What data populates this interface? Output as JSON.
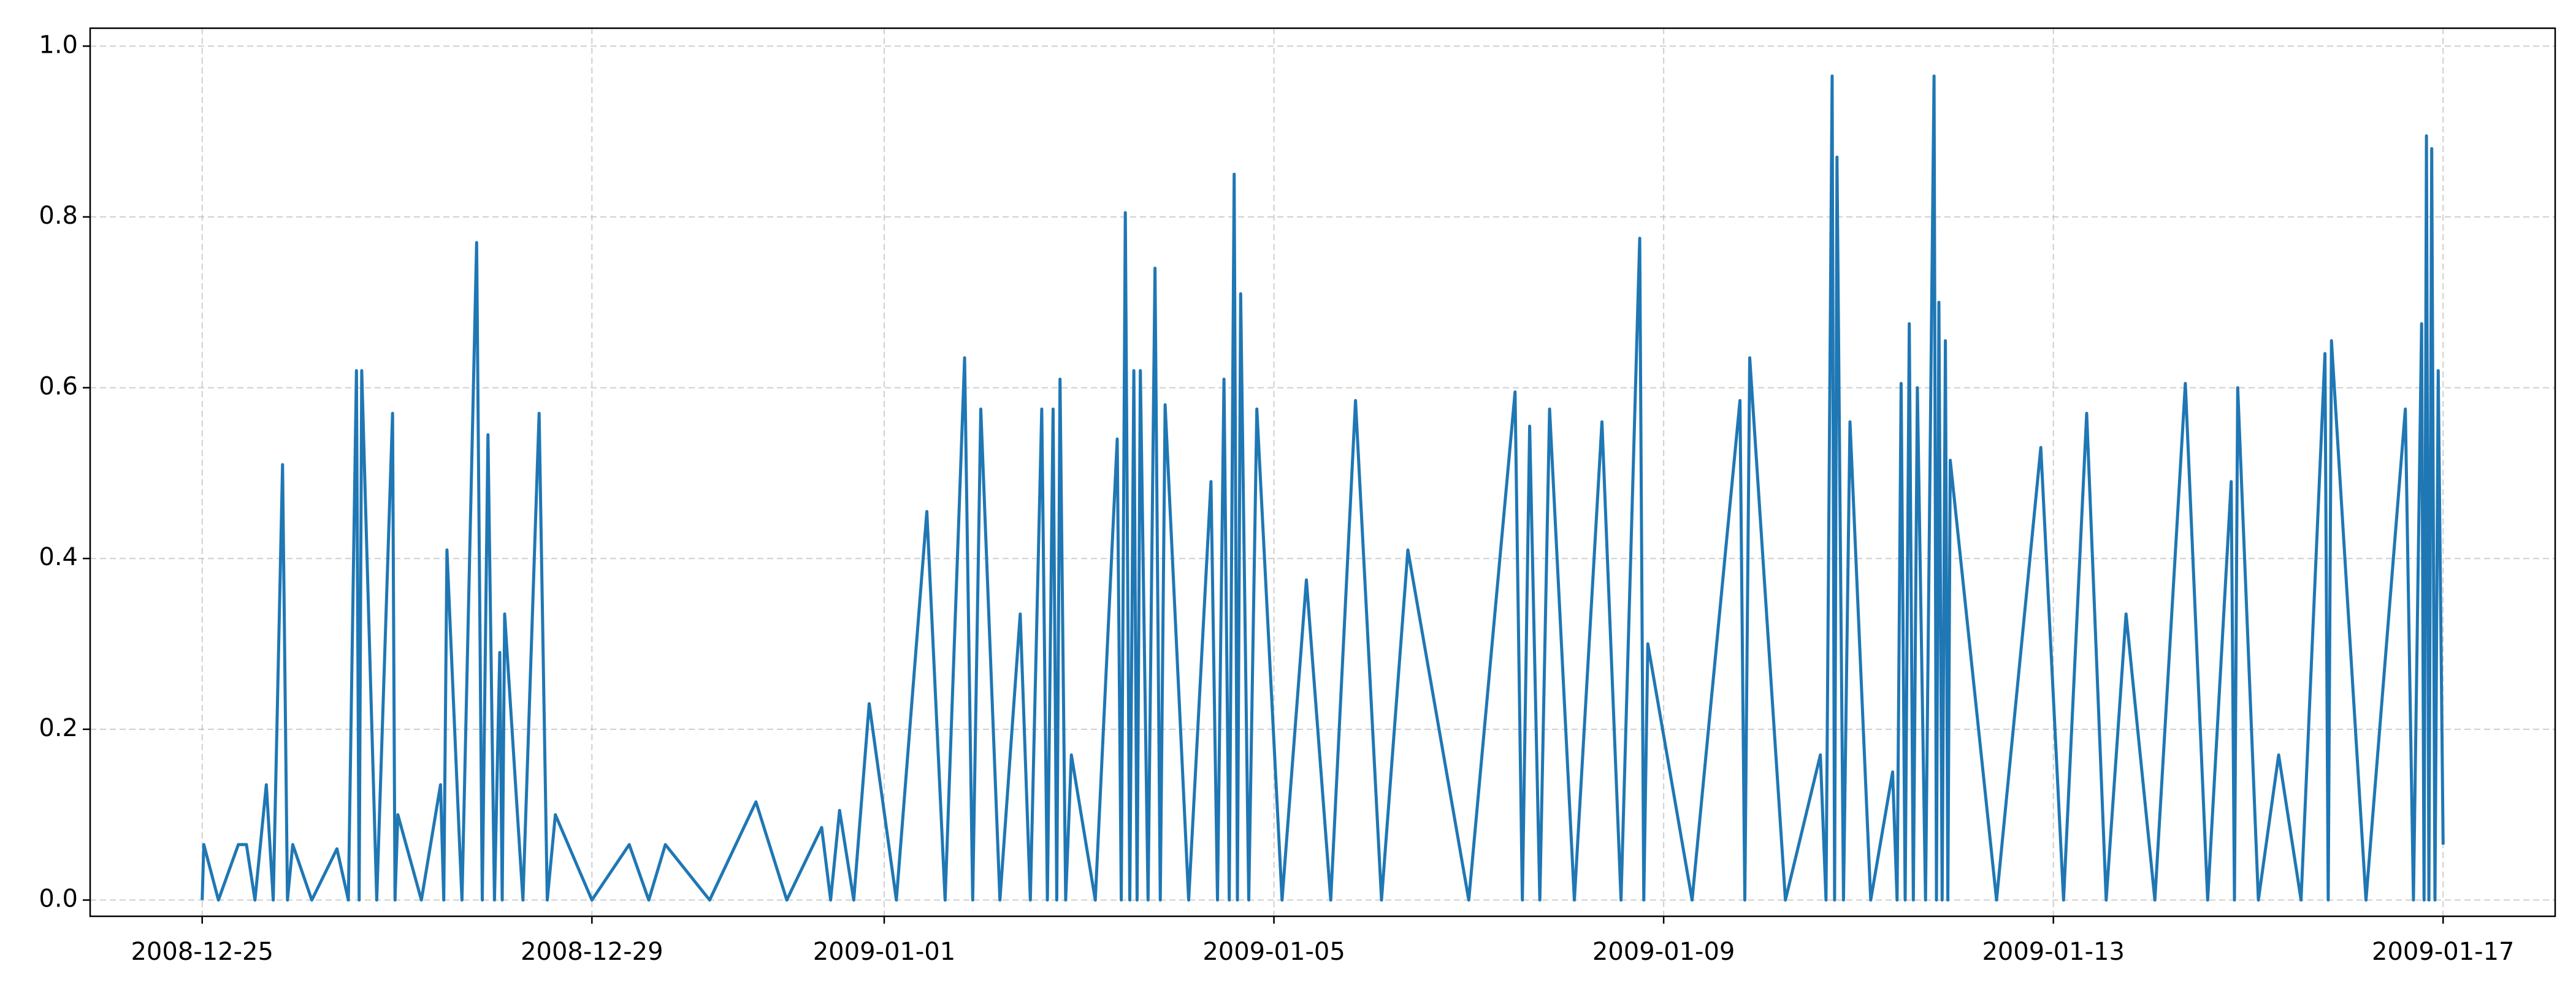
{
  "chart_data": {
    "type": "line",
    "color": "#1f77b4",
    "grid": true,
    "xlim": [
      "2008-12-23 20:24",
      "2009-01-18 03:36"
    ],
    "xticks": [
      "2008-12-25",
      "2008-12-29",
      "2009-01-01",
      "2009-01-05",
      "2009-01-09",
      "2009-01-13",
      "2009-01-17"
    ],
    "ylim": [
      -0.019,
      1.021
    ],
    "yticks": [
      {
        "value": 0,
        "label": "0.0"
      },
      0.2,
      0.4,
      0.6,
      0.8,
      {
        "value": 1,
        "label": "1.0"
      }
    ],
    "x": [
      "2008-12-25 00:00",
      "2008-12-25 00:24",
      "2008-12-25 04:00",
      "2008-12-25 08:54",
      "2008-12-25 10:54",
      "2008-12-25 13:00",
      "2008-12-25 15:48",
      "2008-12-25 17:30",
      "2008-12-25 19:48",
      "2008-12-25 21:00",
      "2008-12-25 22:18",
      "2008-12-26 03:00",
      "2008-12-26 09:12",
      "2008-12-26 12:00",
      "2008-12-26 14:00",
      "2008-12-26 14:40",
      "2008-12-26 15:18",
      "2008-12-26 19:00",
      "2008-12-26 22:54",
      "2008-12-26 23:30",
      "2008-12-27 00:12",
      "2008-12-27 06:00",
      "2008-12-27 10:42",
      "2008-12-27 11:30",
      "2008-12-27 12:18",
      "2008-12-27 16:00",
      "2008-12-27 19:36",
      "2008-12-27 21:00",
      "2008-12-27 22:24",
      "2008-12-28 00:00",
      "2008-12-28 01:18",
      "2008-12-28 01:54",
      "2008-12-28 02:30",
      "2008-12-28 07:00",
      "2008-12-28 11:00",
      "2008-12-28 13:00",
      "2008-12-28 15:00",
      "2008-12-29 00:00",
      "2008-12-29 09:12",
      "2008-12-29 14:00",
      "2008-12-29 18:06",
      "2008-12-30 05:00",
      "2008-12-30 16:24",
      "2008-12-31 00:00",
      "2008-12-31 08:36",
      "2008-12-31 10:48",
      "2008-12-31 13:00",
      "2008-12-31 16:30",
      "2008-12-31 20:18",
      "2009-01-01 03:00",
      "2009-01-01 10:30",
      "2009-01-01 15:00",
      "2009-01-01 19:48",
      "2009-01-01 21:48",
      "2009-01-01 23:48",
      "2009-01-02 04:30",
      "2009-01-02 09:30",
      "2009-01-02 12:00",
      "2009-01-02 14:48",
      "2009-01-02 16:12",
      "2009-01-02 17:36",
      "2009-01-02 18:30",
      "2009-01-02 19:18",
      "2009-01-02 20:42",
      "2009-01-02 22:06",
      "2009-01-03 04:00",
      "2009-01-03 09:24",
      "2009-01-03 10:24",
      "2009-01-03 11:24",
      "2009-01-03 12:30",
      "2009-01-03 13:30",
      "2009-01-03 14:18",
      "2009-01-03 15:06",
      "2009-01-03 17:00",
      "2009-01-03 18:42",
      "2009-01-03 20:00",
      "2009-01-03 21:12",
      "2009-01-04 03:00",
      "2009-01-04 08:30",
      "2009-01-04 10:06",
      "2009-01-04 11:42",
      "2009-01-04 13:00",
      "2009-01-04 14:12",
      "2009-01-04 15:00",
      "2009-01-04 15:48",
      "2009-01-04 17:48",
      "2009-01-04 19:48",
      "2009-01-05 02:00",
      "2009-01-05 08:00",
      "2009-01-05 14:00",
      "2009-01-05 20:06",
      "2009-01-06 02:30",
      "2009-01-06 09:00",
      "2009-01-07 00:00",
      "2009-01-07 11:24",
      "2009-01-07 13:12",
      "2009-01-07 15:00",
      "2009-01-07 17:30",
      "2009-01-07 19:54",
      "2009-01-08 02:00",
      "2009-01-08 08:48",
      "2009-01-08 13:30",
      "2009-01-08 18:06",
      "2009-01-08 19:06",
      "2009-01-08 20:06",
      "2009-01-09 07:00",
      "2009-01-09 18:48",
      "2009-01-09 20:00",
      "2009-01-09 21:12",
      "2009-01-10 06:00",
      "2009-01-10 14:36",
      "2009-01-10 16:00",
      "2009-01-10 17:30",
      "2009-01-10 18:06",
      "2009-01-10 18:42",
      "2009-01-10 20:18",
      "2009-01-10 21:54",
      "2009-01-11 03:00",
      "2009-01-11 08:24",
      "2009-01-11 09:30",
      "2009-01-11 10:30",
      "2009-01-11 11:30",
      "2009-01-11 12:30",
      "2009-01-11 13:30",
      "2009-01-11 14:30",
      "2009-01-11 16:30",
      "2009-01-11 18:36",
      "2009-01-11 19:12",
      "2009-01-11 19:48",
      "2009-01-11 20:36",
      "2009-01-11 21:24",
      "2009-01-11 22:00",
      "2009-01-11 22:36",
      "2009-01-12 10:00",
      "2009-01-12 20:54",
      "2009-01-13 02:30",
      "2009-01-13 08:12",
      "2009-01-13 13:00",
      "2009-01-13 17:54",
      "2009-01-14 01:00",
      "2009-01-14 08:30",
      "2009-01-14 14:00",
      "2009-01-14 19:48",
      "2009-01-14 20:36",
      "2009-01-14 21:24",
      "2009-01-15 02:30",
      "2009-01-15 07:30",
      "2009-01-15 13:00",
      "2009-01-15 18:54",
      "2009-01-15 19:42",
      "2009-01-15 20:30",
      "2009-01-16 05:00",
      "2009-01-16 14:42",
      "2009-01-16 16:42",
      "2009-01-16 18:42",
      "2009-01-16 19:18",
      "2009-01-16 19:54",
      "2009-01-16 20:30",
      "2009-01-16 21:12",
      "2009-01-16 22:00",
      "2009-01-16 22:48",
      "2009-01-17 00:00"
    ],
    "values": [
      0,
      0.065,
      0,
      0.065,
      0.065,
      0,
      0.135,
      0,
      0.51,
      0,
      0.065,
      0,
      0.06,
      0,
      0.62,
      0,
      0.62,
      0,
      0.57,
      0,
      0.1,
      0,
      0.135,
      0,
      0.41,
      0,
      0.77,
      0,
      0.545,
      0,
      0.29,
      0,
      0.335,
      0,
      0.57,
      0,
      0.1,
      0,
      0.065,
      0,
      0.065,
      0,
      0.115,
      0,
      0.085,
      0,
      0.105,
      0,
      0.23,
      0,
      0.455,
      0,
      0.635,
      0,
      0.575,
      0,
      0.335,
      0,
      0.575,
      0,
      0.575,
      0,
      0.61,
      0,
      0.17,
      0,
      0.54,
      0,
      0.805,
      0,
      0.62,
      0,
      0.62,
      0,
      0.74,
      0,
      0.58,
      0,
      0.49,
      0,
      0.61,
      0,
      0.85,
      0,
      0.71,
      0,
      0.575,
      0,
      0.375,
      0,
      0.585,
      0,
      0.41,
      0,
      0.595,
      0,
      0.555,
      0,
      0.575,
      0,
      0.56,
      0,
      0.775,
      0,
      0.3,
      0,
      0.585,
      0,
      0.635,
      0,
      0.17,
      0,
      0.965,
      0,
      0.87,
      0,
      0.56,
      0,
      0.15,
      0,
      0.605,
      0,
      0.675,
      0,
      0.6,
      0,
      0.965,
      0,
      0.7,
      0,
      0.655,
      0,
      0.515,
      0,
      0.53,
      0,
      0.57,
      0,
      0.335,
      0,
      0.605,
      0,
      0.49,
      0,
      0.6,
      0,
      0.17,
      0,
      0.64,
      0,
      0.655,
      0,
      0.575,
      0,
      0.675,
      0,
      0.895,
      0,
      0.88,
      0,
      0.62,
      0.065
    ]
  }
}
